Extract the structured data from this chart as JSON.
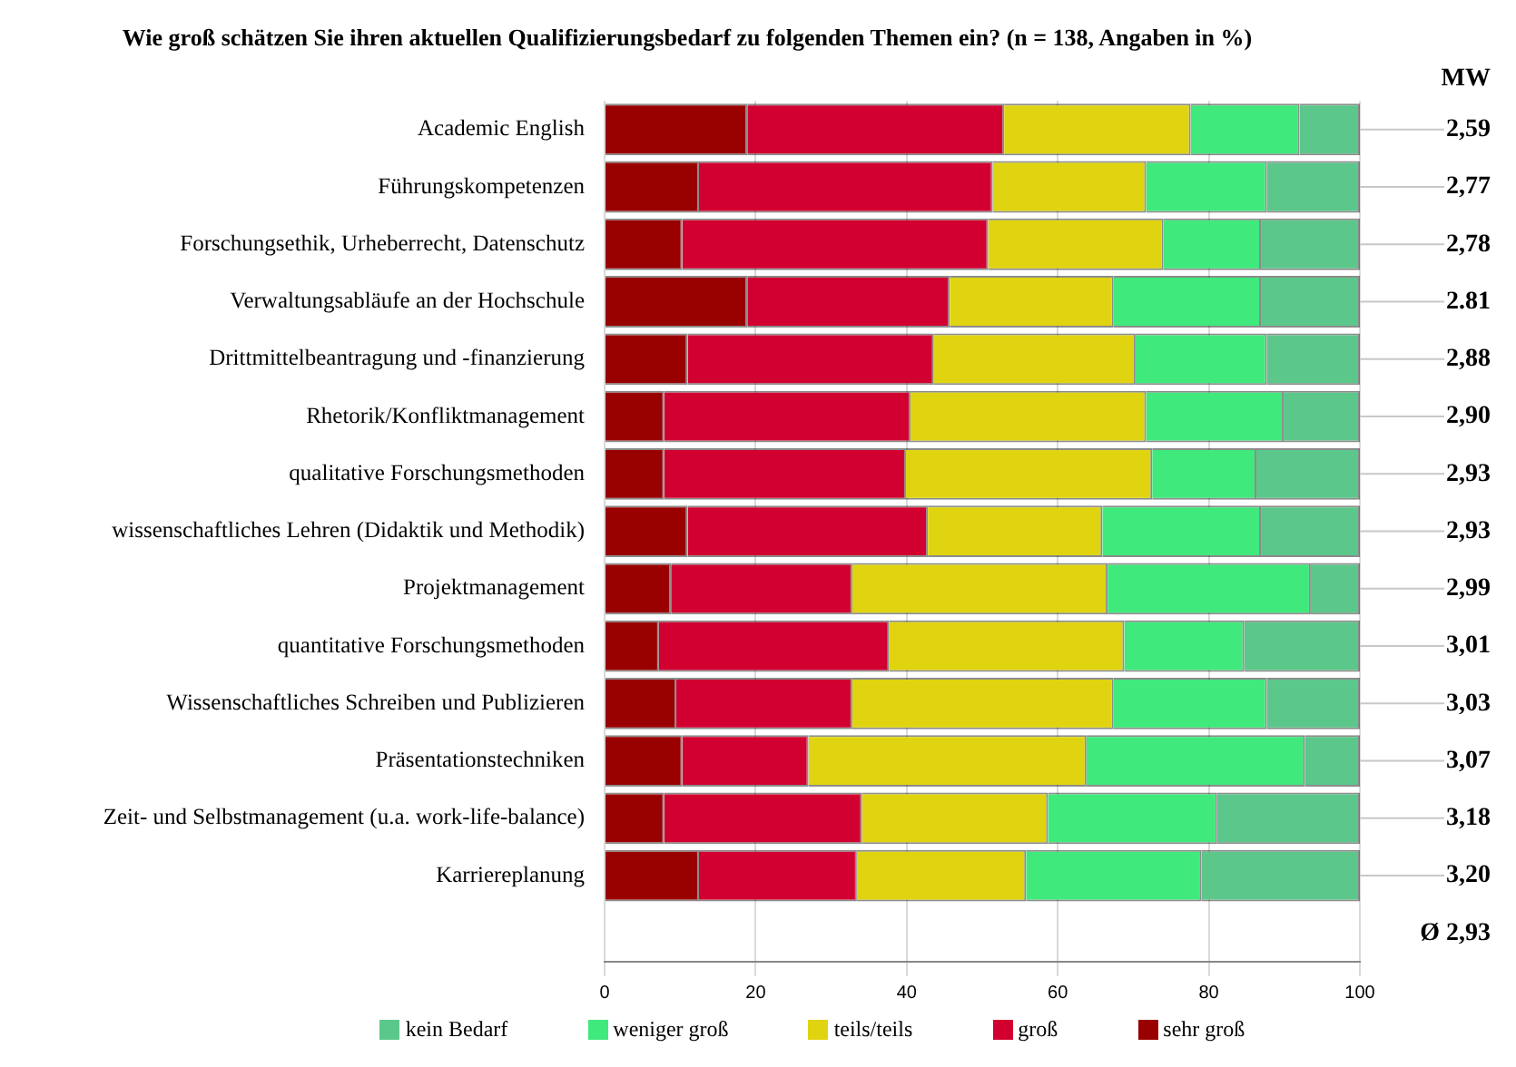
{
  "chart_data": {
    "type": "bar",
    "orientation": "horizontal",
    "stacked": true,
    "title": "Wie groß schätzen Sie ihren aktuellen Qualifizierungsbedarf zu folgenden Themen ein? (n = 138, Angaben in %)",
    "categories": [
      "Academic English",
      "Führungskompetenzen",
      "Forschungsethik, Urheberrecht, Datenschutz",
      "Verwaltungsabläufe an der Hochschule",
      "Drittmittelbeantragung und -finanzierung",
      "Rhetorik/Konfliktmanagement",
      "qualitative Forschungsmethoden",
      "wissenschaftliches Lehren (Didaktik und Methodik)",
      "Projektmanagement",
      "quantitative Forschungsmethoden",
      "Wissenschaftliches Schreiben und Publizieren",
      "Präsentationstechniken",
      "Zeit- und Selbstmanagement (u.a. work-life-balance)",
      "Karriereplanung"
    ],
    "series": [
      {
        "name": "sehr groß",
        "color": "#990000",
        "values": [
          18.9,
          12.5,
          10.3,
          18.9,
          11.0,
          7.9,
          7.9,
          11.0,
          8.8,
          7.2,
          9.5,
          10.3,
          7.9,
          12.5
        ]
      },
      {
        "name": "groß",
        "color": "#d20030",
        "values": [
          34.0,
          38.9,
          40.5,
          26.8,
          32.6,
          32.6,
          32.0,
          31.8,
          24.0,
          30.5,
          23.3,
          16.7,
          26.2,
          20.9
        ]
      },
      {
        "name": "teils/teils",
        "color": "#e0d410",
        "values": [
          24.7,
          20.3,
          23.2,
          21.7,
          26.7,
          31.2,
          32.6,
          23.1,
          33.8,
          31.1,
          34.6,
          36.8,
          24.6,
          22.4
        ]
      },
      {
        "name": "weniger groß",
        "color": "#40e97c",
        "values": [
          14.4,
          16.0,
          12.9,
          19.5,
          17.4,
          18.2,
          13.8,
          21.0,
          26.9,
          15.9,
          20.3,
          28.9,
          22.4,
          23.2
        ]
      },
      {
        "name": "kein Bedarf",
        "color": "#5cc78a",
        "values": [
          8.0,
          12.3,
          13.1,
          13.1,
          12.3,
          10.1,
          13.7,
          13.1,
          6.5,
          15.3,
          12.3,
          7.3,
          18.9,
          21.0
        ]
      }
    ],
    "xlim": [
      0,
      100
    ],
    "xticks": [
      0,
      20,
      40,
      60,
      80,
      100
    ],
    "grid": "x",
    "legend": "bottom",
    "annotations": [
      "MW",
      "2,59",
      "2,77",
      "2,78",
      "2.81",
      "2,88",
      "2,90",
      "2,93",
      "2,93",
      "2,99",
      "3,01",
      "3,03",
      "3,07",
      "3,18",
      "3,20",
      "Ø 2,93"
    ]
  }
}
